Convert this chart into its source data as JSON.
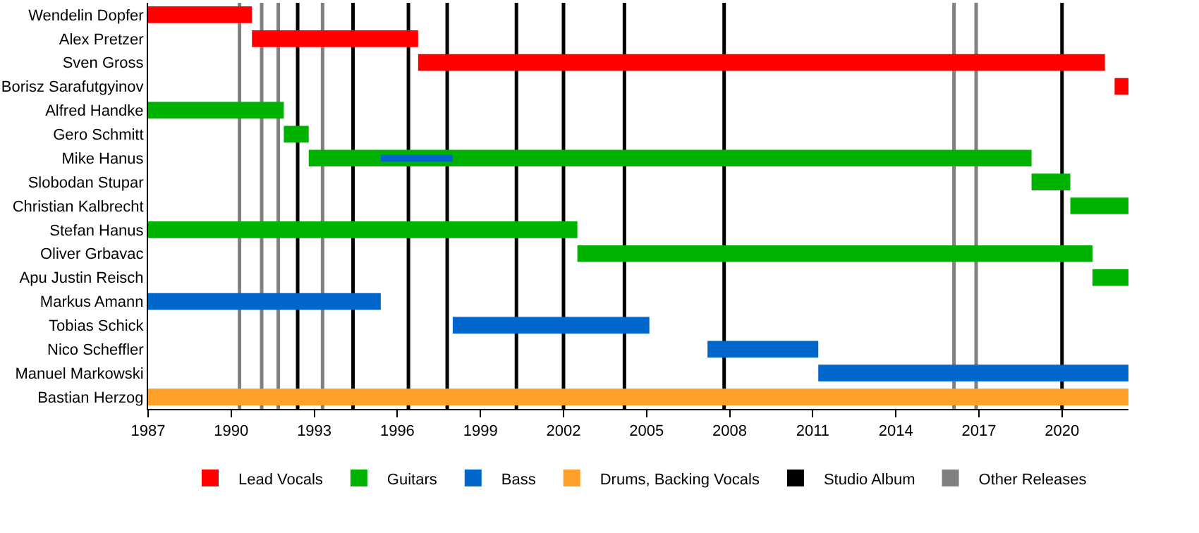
{
  "chart_data": {
    "type": "bar",
    "orientation": "horizontal",
    "categories": [
      "Wendelin Dopfer",
      "Alex Pretzer",
      "Sven Gross",
      "Borisz Sarafutgyinov",
      "Alfred Handke",
      "Gero Schmitt",
      "Mike Hanus",
      "Slobodan Stupar",
      "Christian Kalbrecht",
      "Stefan Hanus",
      "Oliver Grbavac",
      "Apu Justin Reisch",
      "Markus Amann",
      "Tobias Schick",
      "Nico Scheffler",
      "Manuel Markowski",
      "Bastian Herzog"
    ],
    "series": [
      {
        "name": "Lead Vocals",
        "color": "#ff0000",
        "base": [
          1987,
          1990.75,
          1996.75,
          2021.9,
          null,
          null,
          null,
          null,
          null,
          null,
          null,
          null,
          null,
          null,
          null,
          null,
          null
        ],
        "values": [
          3.75,
          6.0,
          24.8,
          0.5,
          null,
          null,
          null,
          null,
          null,
          null,
          null,
          null,
          null,
          null,
          null,
          null,
          null
        ]
      },
      {
        "name": "Guitars",
        "color": "#00b200",
        "base": [
          null,
          null,
          null,
          null,
          1987,
          1991.9,
          1992.8,
          2018.9,
          2020.3,
          1987,
          2002.5,
          2021.1,
          null,
          null,
          null,
          null,
          null
        ],
        "values": [
          null,
          null,
          null,
          null,
          4.9,
          0.9,
          26.1,
          1.4,
          2.1,
          15.5,
          18.6,
          1.3,
          null,
          null,
          null,
          null,
          null
        ]
      },
      {
        "name": "Bass",
        "color": "#0066cc",
        "base": [
          null,
          null,
          null,
          null,
          null,
          null,
          1995.4,
          null,
          null,
          null,
          null,
          null,
          1987,
          1998.0,
          2007.2,
          2011.2,
          null
        ],
        "values": [
          null,
          null,
          null,
          null,
          null,
          null,
          2.6,
          null,
          null,
          null,
          null,
          null,
          8.4,
          7.1,
          4.0,
          11.2,
          null
        ]
      },
      {
        "name": "Drums, Backing Vocals",
        "color": "#ffa02a",
        "base": [
          null,
          null,
          null,
          null,
          null,
          null,
          null,
          null,
          null,
          null,
          null,
          null,
          null,
          null,
          null,
          null,
          1987
        ],
        "values": [
          null,
          null,
          null,
          null,
          null,
          null,
          null,
          null,
          null,
          null,
          null,
          null,
          null,
          null,
          null,
          null,
          35.4
        ]
      }
    ],
    "xlim": [
      1987,
      2022.4
    ],
    "xticks": [
      1987,
      1990,
      1993,
      1996,
      1999,
      2002,
      2005,
      2008,
      2011,
      2014,
      2017,
      2020
    ],
    "ref_lines": [
      {
        "axis": "x",
        "value": 1992.4,
        "color": "#000000",
        "label": "Studio Album"
      },
      {
        "axis": "x",
        "value": 1994.4,
        "color": "#000000"
      },
      {
        "axis": "x",
        "value": 1996.4,
        "color": "#000000"
      },
      {
        "axis": "x",
        "value": 1997.8,
        "color": "#000000"
      },
      {
        "axis": "x",
        "value": 2000.3,
        "color": "#000000"
      },
      {
        "axis": "x",
        "value": 2002.0,
        "color": "#000000"
      },
      {
        "axis": "x",
        "value": 2004.2,
        "color": "#000000"
      },
      {
        "axis": "x",
        "value": 2007.8,
        "color": "#000000"
      },
      {
        "axis": "x",
        "value": 2020.0,
        "color": "#000000"
      },
      {
        "axis": "x",
        "value": 1990.3,
        "color": "#808080",
        "label": "Other Releases"
      },
      {
        "axis": "x",
        "value": 1991.1,
        "color": "#808080"
      },
      {
        "axis": "x",
        "value": 1991.7,
        "color": "#808080"
      },
      {
        "axis": "x",
        "value": 1993.3,
        "color": "#808080"
      },
      {
        "axis": "x",
        "value": 2016.1,
        "color": "#808080"
      },
      {
        "axis": "x",
        "value": 2016.9,
        "color": "#808080"
      }
    ],
    "grid": false,
    "legend": "bottom"
  }
}
